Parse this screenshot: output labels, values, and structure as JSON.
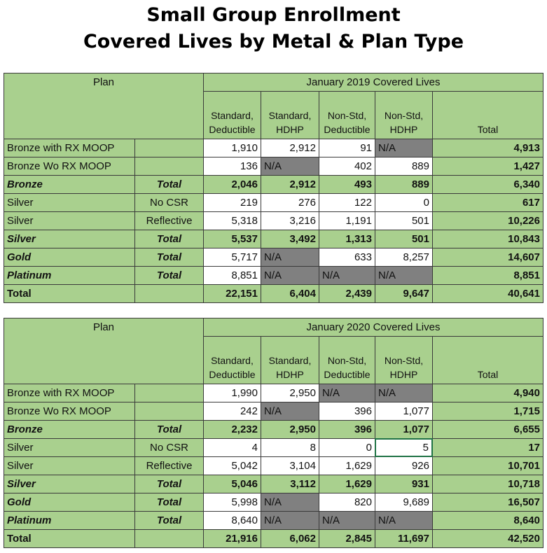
{
  "header": {
    "title_line1": "Small Group Enrollment",
    "title_line2": "Covered Lives by Metal & Plan Type"
  },
  "tables": [
    {
      "plan_header": "Plan",
      "period": "January 2019 Covered Lives",
      "columns": [
        [
          "Standard,",
          "Deductible"
        ],
        [
          "Standard,",
          "HDHP"
        ],
        [
          "Non-Std,",
          "Deductible"
        ],
        [
          "Non-Std,",
          "HDHP"
        ]
      ],
      "total_header": "Total",
      "rows": [
        {
          "plan": "Bronze with RX MOOP",
          "values": [
            "1,910",
            "2,912",
            "91",
            "N/A"
          ],
          "total": "4,913"
        },
        {
          "plan": "Bronze Wo RX MOOP",
          "values": [
            "136",
            "N/A",
            "402",
            "889"
          ],
          "total": "1,427"
        },
        {
          "plan": "Bronze",
          "sub": "Total",
          "values": [
            "2,046",
            "2,912",
            "493",
            "889"
          ],
          "total": "6,340"
        },
        {
          "plan": "Silver",
          "sub": "No CSR",
          "values": [
            "219",
            "276",
            "122",
            "0"
          ],
          "total": "617"
        },
        {
          "plan": "Silver",
          "sub": "Reflective",
          "values": [
            "5,318",
            "3,216",
            "1,191",
            "501"
          ],
          "total": "10,226"
        },
        {
          "plan": "Silver",
          "sub": "Total",
          "values": [
            "5,537",
            "3,492",
            "1,313",
            "501"
          ],
          "total": "10,843"
        },
        {
          "plan": "Gold",
          "sub": "Total",
          "values": [
            "5,717",
            "N/A",
            "633",
            "8,257"
          ],
          "total": "14,607"
        },
        {
          "plan": "Platinum",
          "sub": "Total",
          "values": [
            "8,851",
            "N/A",
            "N/A",
            "N/A"
          ],
          "total": "8,851"
        },
        {
          "plan": "Total",
          "values": [
            "22,151",
            "6,404",
            "2,439",
            "9,647"
          ],
          "total": "40,641"
        }
      ]
    },
    {
      "plan_header": "Plan",
      "period": "January 2020 Covered Lives",
      "columns": [
        [
          "Standard,",
          "Deductible"
        ],
        [
          "Standard,",
          "HDHP"
        ],
        [
          "Non-Std,",
          "Deductible"
        ],
        [
          "Non-Std,",
          "HDHP"
        ]
      ],
      "total_header": "Total",
      "rows": [
        {
          "plan": "Bronze with RX MOOP",
          "values": [
            "1,990",
            "2,950",
            "N/A",
            "N/A"
          ],
          "total": "4,940"
        },
        {
          "plan": "Bronze Wo RX MOOP",
          "values": [
            "242",
            "N/A",
            "396",
            "1,077"
          ],
          "total": "1,715"
        },
        {
          "plan": "Bronze",
          "sub": "Total",
          "values": [
            "2,232",
            "2,950",
            "396",
            "1,077"
          ],
          "total": "6,655"
        },
        {
          "plan": "Silver",
          "sub": "No CSR",
          "values": [
            "4",
            "8",
            "0",
            "5"
          ],
          "total": "17"
        },
        {
          "plan": "Silver",
          "sub": "Reflective",
          "values": [
            "5,042",
            "3,104",
            "1,629",
            "926"
          ],
          "total": "10,701"
        },
        {
          "plan": "Silver",
          "sub": "Total",
          "values": [
            "5,046",
            "3,112",
            "1,629",
            "931"
          ],
          "total": "10,718"
        },
        {
          "plan": "Gold",
          "sub": "Total",
          "values": [
            "5,998",
            "N/A",
            "820",
            "9,689"
          ],
          "total": "16,507"
        },
        {
          "plan": "Platinum",
          "sub": "Total",
          "values": [
            "8,640",
            "N/A",
            "N/A",
            "N/A"
          ],
          "total": "8,640"
        },
        {
          "plan": "Total",
          "values": [
            "21,916",
            "6,062",
            "2,845",
            "11,697"
          ],
          "total": "42,520"
        }
      ]
    }
  ]
}
